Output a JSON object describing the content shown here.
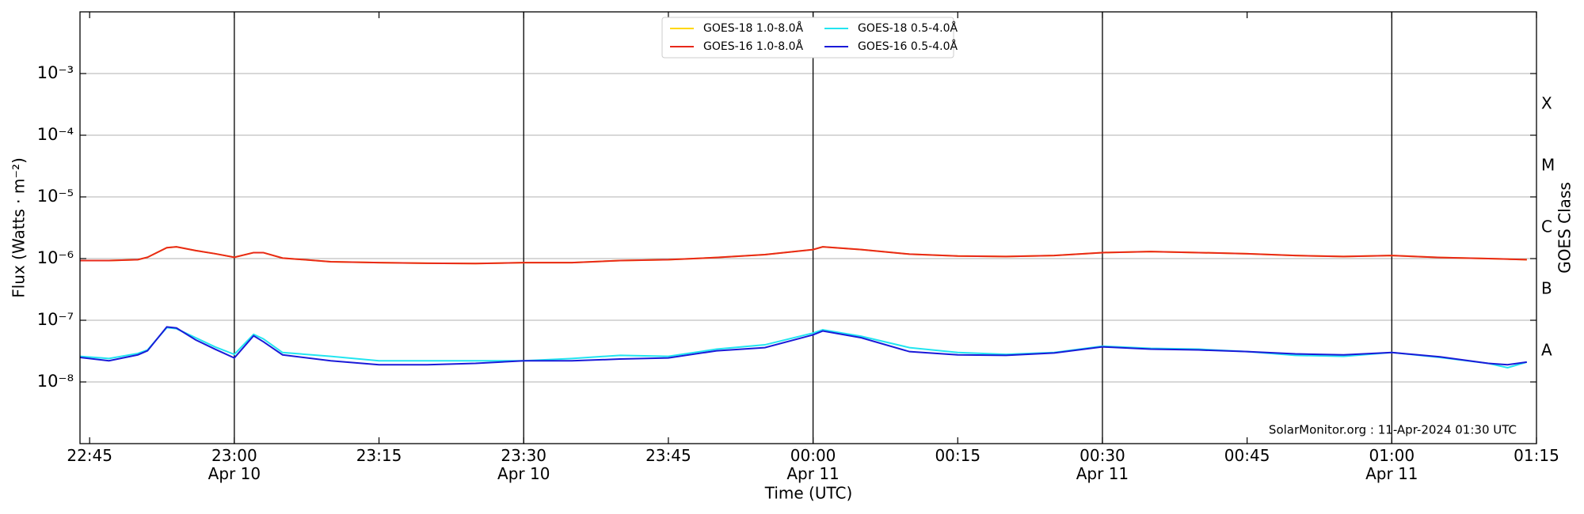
{
  "chart_data": {
    "type": "line",
    "y_label": "Flux (Watts · m⁻²)",
    "x_label": "Time (UTC)",
    "y2_label": "GOES Class",
    "annotation": "SolarMonitor.org : 11-Apr-2024 01:30 UTC",
    "log_y": true,
    "grid": true,
    "legend": "top",
    "x": [
      "Apr 10 22:44",
      "Apr 10 22:47",
      "Apr 10 22:50",
      "Apr 10 22:51",
      "Apr 10 22:53",
      "Apr 10 22:54",
      "Apr 10 22:56",
      "Apr 10 22:58",
      "Apr 10 23:00",
      "Apr 10 23:02",
      "Apr 10 23:03",
      "Apr 10 23:05",
      "Apr 10 23:10",
      "Apr 10 23:15",
      "Apr 10 23:20",
      "Apr 10 23:25",
      "Apr 10 23:30",
      "Apr 10 23:35",
      "Apr 10 23:40",
      "Apr 10 23:45",
      "Apr 10 23:50",
      "Apr 10 23:55",
      "Apr 11 00:00",
      "Apr 11 00:01",
      "Apr 11 00:05",
      "Apr 11 00:10",
      "Apr 11 00:15",
      "Apr 11 00:20",
      "Apr 11 00:25",
      "Apr 11 00:30",
      "Apr 11 00:35",
      "Apr 11 00:40",
      "Apr 11 00:45",
      "Apr 11 00:50",
      "Apr 11 00:55",
      "Apr 11 01:00",
      "Apr 11 01:05",
      "Apr 11 01:10",
      "Apr 11 01:12",
      "Apr 11 01:14"
    ],
    "series": [
      {
        "name": "GOES-18 1.0-8.0Å",
        "color": "#ffd700",
        "values": [
          9.3e-07,
          9.3e-07,
          9.6e-07,
          1.05e-06,
          1.5e-06,
          1.55e-06,
          1.35e-06,
          1.2e-06,
          1.05e-06,
          1.25e-06,
          1.25e-06,
          1.02e-06,
          8.9e-07,
          8.6e-07,
          8.4e-07,
          8.3e-07,
          8.6e-07,
          8.6e-07,
          9.3e-07,
          9.6e-07,
          1.04e-06,
          1.16e-06,
          1.4e-06,
          1.55e-06,
          1.4e-06,
          1.18e-06,
          1.1e-06,
          1.08e-06,
          1.12e-06,
          1.25e-06,
          1.3e-06,
          1.25e-06,
          1.2e-06,
          1.12e-06,
          1.08e-06,
          1.12e-06,
          1.04e-06,
          1e-06,
          9.8e-07,
          9.6e-07
        ]
      },
      {
        "name": "GOES-16 1.0-8.0Å",
        "color": "#e8281a",
        "values": [
          9.3e-07,
          9.3e-07,
          9.6e-07,
          1.05e-06,
          1.5e-06,
          1.55e-06,
          1.35e-06,
          1.2e-06,
          1.05e-06,
          1.25e-06,
          1.25e-06,
          1.02e-06,
          8.9e-07,
          8.6e-07,
          8.4e-07,
          8.3e-07,
          8.6e-07,
          8.6e-07,
          9.3e-07,
          9.6e-07,
          1.04e-06,
          1.16e-06,
          1.4e-06,
          1.55e-06,
          1.4e-06,
          1.18e-06,
          1.1e-06,
          1.08e-06,
          1.12e-06,
          1.25e-06,
          1.3e-06,
          1.25e-06,
          1.2e-06,
          1.12e-06,
          1.08e-06,
          1.12e-06,
          1.04e-06,
          1e-06,
          9.8e-07,
          9.6e-07
        ]
      },
      {
        "name": "GOES-18 0.5-4.0Å",
        "color": "#22e5f0",
        "values": [
          2.6e-08,
          2.4e-08,
          2.9e-08,
          3.3e-08,
          7.6e-08,
          7.3e-08,
          5.2e-08,
          3.7e-08,
          2.8e-08,
          5.9e-08,
          5e-08,
          3e-08,
          2.6e-08,
          2.2e-08,
          2.2e-08,
          2.2e-08,
          2.2e-08,
          2.4e-08,
          2.7e-08,
          2.6e-08,
          3.4e-08,
          4e-08,
          6.2e-08,
          7e-08,
          5.5e-08,
          3.6e-08,
          3e-08,
          2.8e-08,
          3e-08,
          3.8e-08,
          3.5e-08,
          3.4e-08,
          3.1e-08,
          2.7e-08,
          2.6e-08,
          3e-08,
          2.5e-08,
          2e-08,
          1.7e-08,
          2.1e-08
        ]
      },
      {
        "name": "GOES-16 0.5-4.0Å",
        "color": "#1a1ad8",
        "values": [
          2.5e-08,
          2.2e-08,
          2.75e-08,
          3.2e-08,
          7.8e-08,
          7.5e-08,
          4.8e-08,
          3.4e-08,
          2.45e-08,
          5.6e-08,
          4.5e-08,
          2.75e-08,
          2.2e-08,
          1.9e-08,
          1.9e-08,
          2e-08,
          2.2e-08,
          2.2e-08,
          2.35e-08,
          2.45e-08,
          3.2e-08,
          3.6e-08,
          5.8e-08,
          6.7e-08,
          5.2e-08,
          3.1e-08,
          2.75e-08,
          2.7e-08,
          2.95e-08,
          3.7e-08,
          3.4e-08,
          3.3e-08,
          3.1e-08,
          2.85e-08,
          2.75e-08,
          3e-08,
          2.55e-08,
          2e-08,
          1.9e-08,
          2.1e-08
        ]
      }
    ],
    "xlim": [
      "Apr 10 22:44",
      "Apr 11 01:15"
    ],
    "xticks": [
      {
        "value": "Apr 10 22:45",
        "label": "22:45"
      },
      {
        "value": "Apr 10 23:00",
        "label": "23:00\nApr 10"
      },
      {
        "value": "Apr 10 23:15",
        "label": "23:15"
      },
      {
        "value": "Apr 10 23:30",
        "label": "23:30\nApr 10"
      },
      {
        "value": "Apr 10 23:45",
        "label": "23:45"
      },
      {
        "value": "Apr 11 00:00",
        "label": "00:00\nApr 11"
      },
      {
        "value": "Apr 11 00:15",
        "label": "00:15"
      },
      {
        "value": "Apr 11 00:30",
        "label": "00:30\nApr 11"
      },
      {
        "value": "Apr 11 00:45",
        "label": "00:45"
      },
      {
        "value": "Apr 11 01:00",
        "label": "01:00\nApr 11"
      },
      {
        "value": "Apr 11 01:15",
        "label": "01:15"
      }
    ],
    "vlines": [
      "Apr 10 23:00",
      "Apr 10 23:30",
      "Apr 11 00:00",
      "Apr 11 00:30",
      "Apr 11 01:00"
    ],
    "ylim": [
      1e-09,
      0.01
    ],
    "yticks": [
      {
        "value": 1e-08,
        "label": "10⁻⁸"
      },
      {
        "value": 1e-07,
        "label": "10⁻⁷"
      },
      {
        "value": 1e-06,
        "label": "10⁻⁶"
      },
      {
        "value": 1e-05,
        "label": "10⁻⁵"
      },
      {
        "value": 0.0001,
        "label": "10⁻⁴"
      },
      {
        "value": 0.001,
        "label": "10⁻³"
      }
    ],
    "classes": [
      {
        "label": "A",
        "from": 1e-08,
        "to": 1e-07
      },
      {
        "label": "B",
        "from": 1e-07,
        "to": 1e-06
      },
      {
        "label": "C",
        "from": 1e-06,
        "to": 1e-05
      },
      {
        "label": "M",
        "from": 1e-05,
        "to": 0.0001
      },
      {
        "label": "X",
        "from": 0.0001,
        "to": 0.001
      }
    ]
  }
}
